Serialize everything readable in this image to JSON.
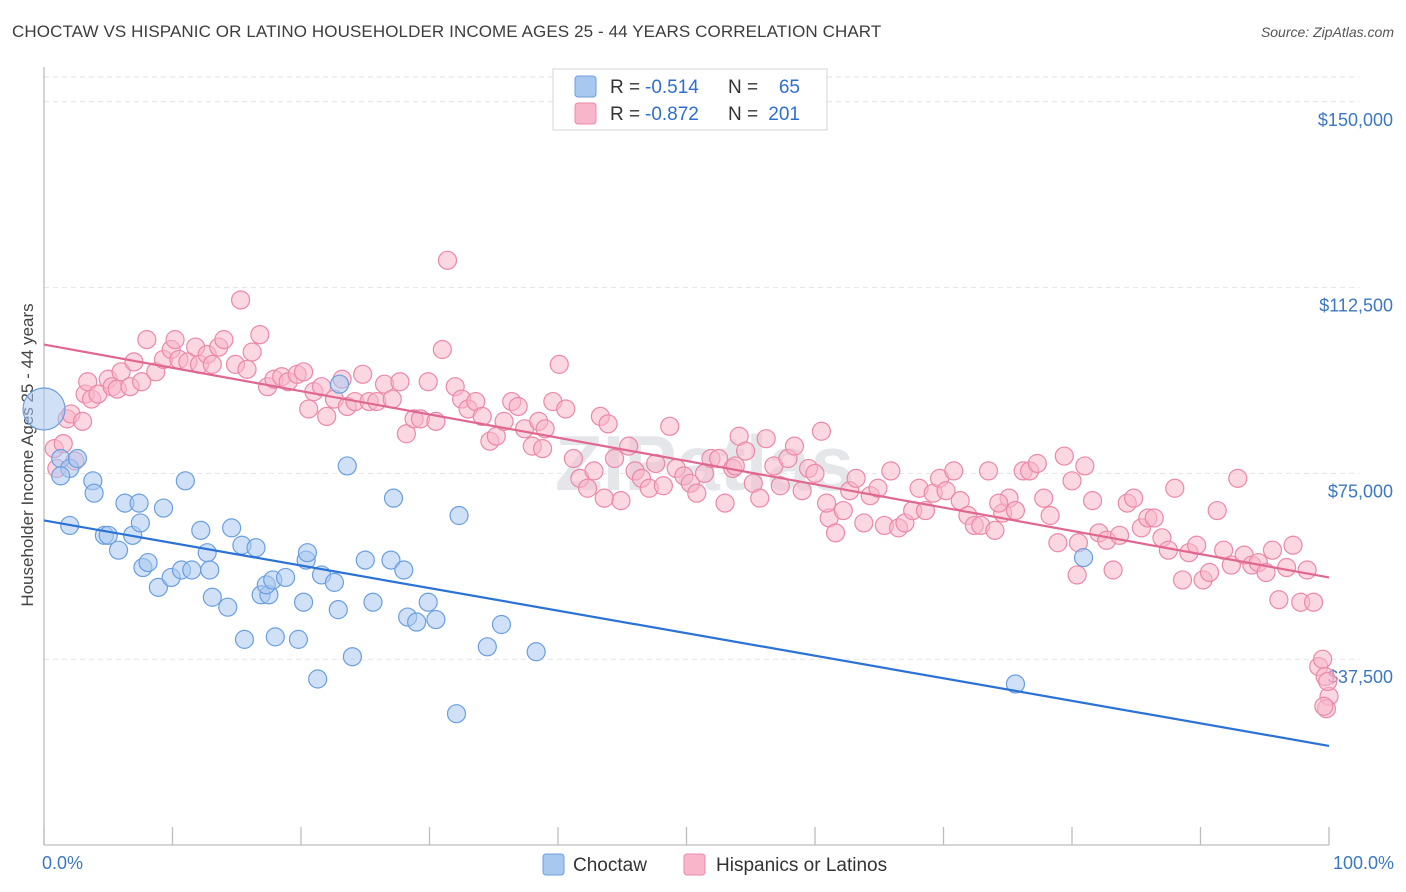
{
  "header": {
    "title": "CHOCTAW VS HISPANIC OR LATINO HOUSEHOLDER INCOME AGES 25 - 44 YEARS CORRELATION CHART",
    "source": "Source: ZipAtlas.com"
  },
  "watermark": "ZIPatlas",
  "colors": {
    "choctaw_fill": "#a9c8f0",
    "choctaw_stroke": "#6a9fe0",
    "choctaw_line": "#2b72d6",
    "hispanic_fill": "#f7b6ca",
    "hispanic_stroke": "#ec88a8",
    "hispanic_line": "#e0678f",
    "axis_text": "#3b78c4"
  },
  "legend": {
    "rows": [
      {
        "r_label": "R =",
        "r_value": "-0.514",
        "n_label": "N =",
        "n_value": "65"
      },
      {
        "r_label": "R =",
        "r_value": "-0.872",
        "n_label": "N =",
        "n_value": "201"
      }
    ]
  },
  "bottom_legend": {
    "items": [
      {
        "label": "Choctaw"
      },
      {
        "label": "Hispanics or Latinos"
      }
    ]
  },
  "chart_data": {
    "type": "scatter",
    "title": "CHOCTAW VS HISPANIC OR LATINO HOUSEHOLDER INCOME AGES 25 - 44 YEARS CORRELATION CHART",
    "xlabel": "",
    "ylabel": "Householder Income Ages 25 - 44 years",
    "xlim": [
      0,
      100
    ],
    "ylim": [
      0,
      155000
    ],
    "x_tick_labels": [
      "0.0%",
      "100.0%"
    ],
    "y_ticks": [
      37500,
      75000,
      112500,
      150000
    ],
    "y_tick_labels": [
      "$37,500",
      "$75,000",
      "$112,500",
      "$150,000"
    ],
    "grid": true,
    "series": [
      {
        "name": "Choctaw",
        "r": -0.514,
        "n": 65,
        "trend": {
          "x": [
            0,
            100
          ],
          "y": [
            65500,
            20000
          ]
        },
        "points": [
          [
            0.0,
            88000
          ],
          [
            1.3,
            78000
          ],
          [
            2.0,
            76000
          ],
          [
            2.6,
            78000
          ],
          [
            1.3,
            74500
          ],
          [
            2.0,
            64500
          ],
          [
            3.8,
            73500
          ],
          [
            3.9,
            71000
          ],
          [
            4.7,
            62500
          ],
          [
            5.0,
            62500
          ],
          [
            5.8,
            59500
          ],
          [
            6.3,
            69000
          ],
          [
            6.9,
            62500
          ],
          [
            7.4,
            69000
          ],
          [
            7.5,
            65000
          ],
          [
            7.7,
            56000
          ],
          [
            8.1,
            57000
          ],
          [
            9.3,
            68000
          ],
          [
            8.9,
            52000
          ],
          [
            9.9,
            54000
          ],
          [
            10.7,
            55500
          ],
          [
            11.0,
            73500
          ],
          [
            11.5,
            55500
          ],
          [
            12.2,
            63500
          ],
          [
            12.7,
            59000
          ],
          [
            12.9,
            55500
          ],
          [
            13.1,
            50000
          ],
          [
            14.3,
            48000
          ],
          [
            14.6,
            64000
          ],
          [
            15.4,
            60500
          ],
          [
            15.6,
            41500
          ],
          [
            16.5,
            60000
          ],
          [
            16.9,
            50500
          ],
          [
            17.5,
            50500
          ],
          [
            17.3,
            52500
          ],
          [
            17.8,
            53500
          ],
          [
            18.0,
            42000
          ],
          [
            18.8,
            54000
          ],
          [
            19.8,
            41500
          ],
          [
            20.4,
            57500
          ],
          [
            20.5,
            59000
          ],
          [
            20.2,
            49000
          ],
          [
            21.3,
            33500
          ],
          [
            21.6,
            54500
          ],
          [
            22.6,
            53000
          ],
          [
            22.9,
            47500
          ],
          [
            23.6,
            76500
          ],
          [
            24.0,
            38000
          ],
          [
            25.0,
            57500
          ],
          [
            25.6,
            49000
          ],
          [
            27.0,
            57500
          ],
          [
            27.2,
            70000
          ],
          [
            28.0,
            55500
          ],
          [
            28.3,
            46000
          ],
          [
            29.0,
            45000
          ],
          [
            29.9,
            49000
          ],
          [
            30.5,
            45500
          ],
          [
            32.1,
            26500
          ],
          [
            32.3,
            66500
          ],
          [
            34.5,
            40000
          ],
          [
            35.6,
            44500
          ],
          [
            38.3,
            39000
          ],
          [
            75.6,
            32500
          ],
          [
            80.9,
            58000
          ],
          [
            23.0,
            93000
          ]
        ]
      },
      {
        "name": "Hispanics or Latinos",
        "r": -0.872,
        "n": 201,
        "trend": {
          "x": [
            0,
            100
          ],
          "y": [
            101000,
            54000
          ]
        },
        "points": [
          [
            0.8,
            80000
          ],
          [
            1.0,
            76000
          ],
          [
            1.5,
            81000
          ],
          [
            1.8,
            86000
          ],
          [
            2.1,
            87000
          ],
          [
            3.2,
            91000
          ],
          [
            3.4,
            93500
          ],
          [
            3.7,
            90000
          ],
          [
            4.2,
            91000
          ],
          [
            5.0,
            94000
          ],
          [
            5.3,
            92500
          ],
          [
            5.7,
            92000
          ],
          [
            6.0,
            95500
          ],
          [
            6.7,
            92500
          ],
          [
            7.0,
            97500
          ],
          [
            7.6,
            93500
          ],
          [
            8.0,
            102000
          ],
          [
            8.7,
            95500
          ],
          [
            9.3,
            98000
          ],
          [
            9.9,
            100000
          ],
          [
            10.2,
            102000
          ],
          [
            10.5,
            98000
          ],
          [
            11.2,
            97500
          ],
          [
            11.8,
            100500
          ],
          [
            12.1,
            97000
          ],
          [
            12.7,
            99000
          ],
          [
            13.1,
            97000
          ],
          [
            13.6,
            100500
          ],
          [
            14.0,
            102000
          ],
          [
            14.9,
            97000
          ],
          [
            15.3,
            110000
          ],
          [
            15.8,
            96000
          ],
          [
            16.2,
            99500
          ],
          [
            16.8,
            103000
          ],
          [
            17.4,
            92500
          ],
          [
            17.9,
            94000
          ],
          [
            18.5,
            94500
          ],
          [
            19.0,
            93500
          ],
          [
            19.7,
            95000
          ],
          [
            20.2,
            95500
          ],
          [
            20.6,
            88000
          ],
          [
            21.0,
            91500
          ],
          [
            21.6,
            92500
          ],
          [
            22.0,
            86500
          ],
          [
            22.6,
            90000
          ],
          [
            23.2,
            94000
          ],
          [
            23.6,
            88500
          ],
          [
            24.2,
            89500
          ],
          [
            24.8,
            95000
          ],
          [
            25.3,
            89500
          ],
          [
            25.9,
            89500
          ],
          [
            26.5,
            93000
          ],
          [
            27.1,
            90000
          ],
          [
            27.7,
            93500
          ],
          [
            28.2,
            83000
          ],
          [
            28.8,
            86000
          ],
          [
            29.3,
            86000
          ],
          [
            29.9,
            93500
          ],
          [
            30.5,
            85500
          ],
          [
            31.0,
            100000
          ],
          [
            31.4,
            118000
          ],
          [
            32.0,
            92500
          ],
          [
            32.5,
            90000
          ],
          [
            33.0,
            88000
          ],
          [
            33.6,
            89500
          ],
          [
            34.1,
            86500
          ],
          [
            34.7,
            81500
          ],
          [
            35.2,
            82500
          ],
          [
            35.8,
            85500
          ],
          [
            36.4,
            89500
          ],
          [
            36.9,
            88500
          ],
          [
            37.4,
            84000
          ],
          [
            38.0,
            80500
          ],
          [
            38.5,
            85500
          ],
          [
            39.0,
            84000
          ],
          [
            39.6,
            89500
          ],
          [
            40.1,
            97000
          ],
          [
            40.6,
            88000
          ],
          [
            41.2,
            78000
          ],
          [
            41.7,
            74000
          ],
          [
            42.3,
            72000
          ],
          [
            42.8,
            75500
          ],
          [
            43.3,
            86500
          ],
          [
            43.9,
            85000
          ],
          [
            44.4,
            78000
          ],
          [
            44.9,
            69500
          ],
          [
            45.5,
            80500
          ],
          [
            46.0,
            75500
          ],
          [
            46.5,
            74000
          ],
          [
            47.1,
            72000
          ],
          [
            47.6,
            77000
          ],
          [
            48.2,
            72500
          ],
          [
            48.7,
            84500
          ],
          [
            49.2,
            76000
          ],
          [
            49.8,
            74500
          ],
          [
            50.3,
            73000
          ],
          [
            50.8,
            71000
          ],
          [
            51.4,
            75000
          ],
          [
            51.9,
            78000
          ],
          [
            52.5,
            78000
          ],
          [
            53.0,
            69000
          ],
          [
            53.6,
            76000
          ],
          [
            54.1,
            82500
          ],
          [
            54.6,
            79500
          ],
          [
            55.2,
            73000
          ],
          [
            55.7,
            70000
          ],
          [
            56.2,
            82000
          ],
          [
            56.8,
            76500
          ],
          [
            57.3,
            72500
          ],
          [
            57.9,
            78000
          ],
          [
            58.4,
            80500
          ],
          [
            59.0,
            71500
          ],
          [
            59.5,
            76000
          ],
          [
            60.0,
            75000
          ],
          [
            60.5,
            83500
          ],
          [
            61.1,
            66000
          ],
          [
            61.6,
            63000
          ],
          [
            62.2,
            67500
          ],
          [
            62.7,
            71500
          ],
          [
            63.2,
            74000
          ],
          [
            63.8,
            65000
          ],
          [
            64.3,
            70500
          ],
          [
            64.9,
            72000
          ],
          [
            65.4,
            64500
          ],
          [
            65.9,
            75500
          ],
          [
            66.5,
            64000
          ],
          [
            67.0,
            65000
          ],
          [
            67.6,
            67500
          ],
          [
            68.1,
            72000
          ],
          [
            68.6,
            67500
          ],
          [
            69.2,
            71000
          ],
          [
            69.7,
            74000
          ],
          [
            70.2,
            71500
          ],
          [
            70.8,
            75500
          ],
          [
            71.3,
            69500
          ],
          [
            71.9,
            66500
          ],
          [
            72.4,
            64500
          ],
          [
            72.9,
            64500
          ],
          [
            73.5,
            75500
          ],
          [
            74.0,
            63500
          ],
          [
            74.6,
            67000
          ],
          [
            75.1,
            70000
          ],
          [
            75.6,
            67500
          ],
          [
            76.2,
            75500
          ],
          [
            76.7,
            75500
          ],
          [
            77.3,
            77000
          ],
          [
            77.8,
            70000
          ],
          [
            78.3,
            66500
          ],
          [
            78.9,
            61000
          ],
          [
            79.4,
            78500
          ],
          [
            80.0,
            73500
          ],
          [
            80.5,
            61000
          ],
          [
            81.0,
            76500
          ],
          [
            81.6,
            69500
          ],
          [
            82.1,
            63000
          ],
          [
            82.7,
            61500
          ],
          [
            83.2,
            55500
          ],
          [
            83.7,
            62500
          ],
          [
            84.3,
            69000
          ],
          [
            84.8,
            70000
          ],
          [
            85.4,
            64000
          ],
          [
            85.9,
            66000
          ],
          [
            86.4,
            66000
          ],
          [
            87.0,
            62000
          ],
          [
            87.5,
            59500
          ],
          [
            88.0,
            72000
          ],
          [
            88.6,
            53500
          ],
          [
            89.1,
            59000
          ],
          [
            89.7,
            60500
          ],
          [
            90.2,
            53500
          ],
          [
            90.7,
            55000
          ],
          [
            91.3,
            67500
          ],
          [
            91.8,
            59500
          ],
          [
            92.4,
            56500
          ],
          [
            92.9,
            74000
          ],
          [
            93.4,
            58500
          ],
          [
            94.0,
            56500
          ],
          [
            94.5,
            57000
          ],
          [
            95.1,
            55000
          ],
          [
            95.6,
            59500
          ],
          [
            96.1,
            49500
          ],
          [
            96.7,
            56000
          ],
          [
            97.2,
            60500
          ],
          [
            97.8,
            49000
          ],
          [
            98.3,
            55500
          ],
          [
            98.8,
            49000
          ],
          [
            99.2,
            36000
          ],
          [
            99.5,
            37500
          ],
          [
            99.7,
            34000
          ],
          [
            100.0,
            30000
          ],
          [
            99.8,
            27500
          ],
          [
            99.9,
            33000
          ],
          [
            99.6,
            28000
          ],
          [
            3.0,
            85500
          ],
          [
            2.4,
            77500
          ],
          [
            80.4,
            54500
          ],
          [
            60.9,
            69000
          ],
          [
            38.8,
            80000
          ],
          [
            74.3,
            69000
          ],
          [
            53.8,
            76500
          ],
          [
            43.6,
            70000
          ]
        ]
      }
    ]
  }
}
